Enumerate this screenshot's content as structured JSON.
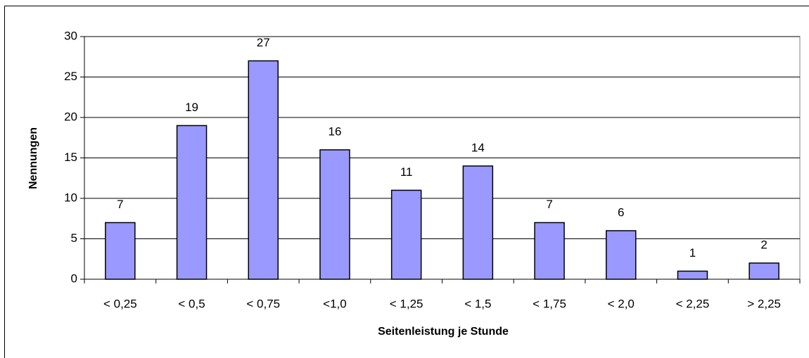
{
  "chart_data": {
    "type": "bar",
    "xlabel": "Seitenleistung je Stunde",
    "ylabel": "Nennungen",
    "categories": [
      "< 0,25",
      "< 0,5",
      "< 0,75",
      "<1,0",
      "< 1,25",
      "< 1,5",
      "< 1,75",
      "< 2,0",
      "< 2,25",
      "> 2,25"
    ],
    "values": [
      7,
      19,
      27,
      16,
      11,
      14,
      7,
      6,
      1,
      2
    ],
    "color": "#9999ff",
    "ylim": [
      0,
      30
    ],
    "yticks": [
      0,
      5,
      10,
      15,
      20,
      25,
      30
    ],
    "grid": true
  }
}
